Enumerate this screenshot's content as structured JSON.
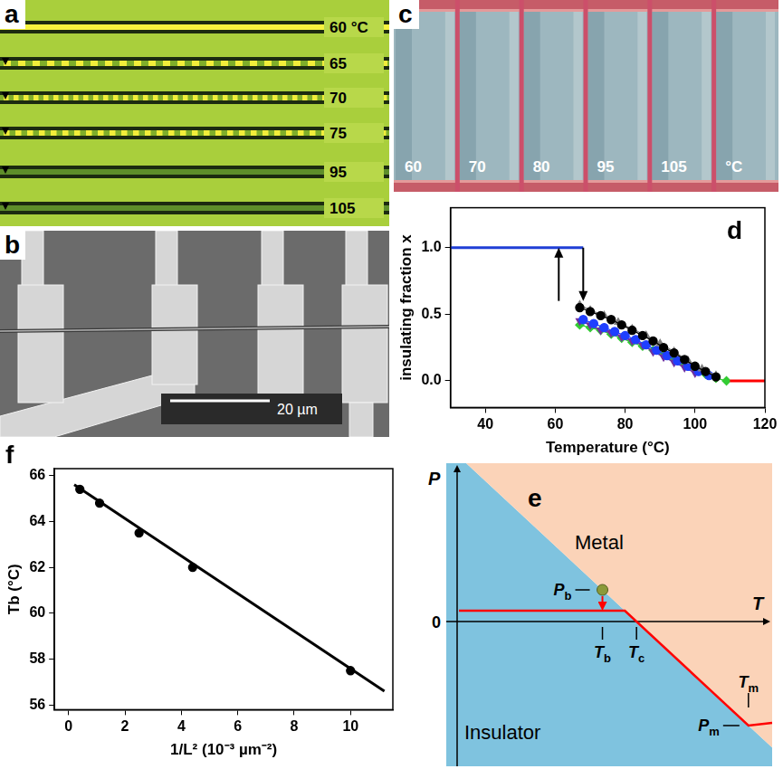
{
  "panels": {
    "a": {
      "label": "a",
      "temperature_labels": [
        "60 °C",
        "65",
        "70",
        "75",
        "95",
        "105"
      ]
    },
    "b": {
      "label": "b",
      "scale_bar": "20 µm"
    },
    "c": {
      "label": "c",
      "temperature_labels": [
        "60",
        "70",
        "80",
        "95",
        "105",
        "°C"
      ]
    },
    "e": {
      "label": "e",
      "axes": {
        "x": "T",
        "y": "P"
      },
      "origin": "0",
      "regions": [
        "Metal",
        "Insulator"
      ],
      "levels": {
        "P": [
          "Pb",
          "Pm"
        ],
        "T": [
          "Tb",
          "Tc",
          "Tm"
        ]
      }
    }
  },
  "chart_data": [
    {
      "panel": "d",
      "type": "scatter",
      "x_label": "Temperature (°C)",
      "y_label": "insulating fraction x",
      "xlim": [
        30,
        120
      ],
      "xticks": [
        40,
        60,
        80,
        100,
        120
      ],
      "ylim": [
        -0.2,
        1.3
      ],
      "yticks": [
        {
          "value": 0,
          "label": "0.0"
        },
        {
          "value": 0.5,
          "label": "0.5"
        },
        {
          "value": 1,
          "label": "1.0"
        }
      ],
      "grid": false,
      "series": [
        {
          "type": "line",
          "color": "#1f3fd6",
          "marker": "none",
          "line_style": "solid",
          "x": [
            30,
            68
          ],
          "values": [
            1,
            1
          ]
        },
        {
          "type": "line",
          "color": "#ff0000",
          "marker": "none",
          "line_style": "solid",
          "x": [
            110,
            120
          ],
          "values": [
            0,
            0
          ]
        },
        {
          "type": "scatter",
          "color": "#000000",
          "marker": "circle",
          "line_style": "solid",
          "x": [
            67,
            70,
            73,
            76,
            79,
            82,
            85,
            88,
            91,
            94,
            97,
            100,
            103,
            106
          ],
          "values": [
            0.55,
            0.52,
            0.49,
            0.46,
            0.42,
            0.38,
            0.34,
            0.3,
            0.25,
            0.21,
            0.16,
            0.11,
            0.07,
            0.03
          ]
        },
        {
          "type": "scatter",
          "color": "#808080",
          "marker": "triangle",
          "line_style": "solid",
          "x": [
            67,
            70,
            74,
            78,
            82,
            86,
            90,
            94,
            98,
            102,
            106
          ],
          "values": [
            0.57,
            0.53,
            0.49,
            0.44,
            0.39,
            0.34,
            0.28,
            0.22,
            0.15,
            0.09,
            0.04
          ]
        },
        {
          "type": "scatter",
          "color": "#1f3fff",
          "marker": "circle",
          "line_style": "solid",
          "x": [
            68,
            71,
            74,
            77,
            80,
            83,
            86,
            89,
            92,
            95,
            98,
            101,
            104
          ],
          "values": [
            0.46,
            0.43,
            0.4,
            0.37,
            0.34,
            0.31,
            0.27,
            0.23,
            0.19,
            0.15,
            0.11,
            0.07,
            0.04
          ]
        },
        {
          "type": "scatter",
          "color": "#7030a0",
          "marker": "triangle_down",
          "line_style": "solid",
          "x": [
            67,
            70,
            73,
            76,
            79,
            82,
            85,
            88,
            91,
            94,
            97,
            100
          ],
          "values": [
            0.45,
            0.42,
            0.38,
            0.36,
            0.33,
            0.3,
            0.27,
            0.22,
            0.18,
            0.14,
            0.1,
            0.06
          ]
        },
        {
          "type": "scatter",
          "color": "#33cc33",
          "marker": "diamond",
          "line_style": "solid",
          "x": [
            67,
            70,
            73,
            76,
            79,
            82,
            85,
            88,
            91,
            94,
            97,
            100,
            103,
            106,
            109
          ],
          "values": [
            0.42,
            0.4,
            0.38,
            0.35,
            0.32,
            0.29,
            0.26,
            0.23,
            0.2,
            0.16,
            0.12,
            0.09,
            0.05,
            0.02,
            0.0
          ]
        }
      ],
      "arrows": [
        {
          "x": 61,
          "from": 0.6,
          "to": 1
        },
        {
          "x": 68,
          "from": 1,
          "to": 0.6
        }
      ]
    },
    {
      "panel": "f",
      "type": "scatter",
      "x_label": "1/L² (10⁻³ µm⁻²)",
      "y_label": "Tb (°C)",
      "xlim": [
        -0.5,
        11.5
      ],
      "xticks": [
        0,
        2,
        4,
        6,
        8,
        10
      ],
      "ylim": [
        55.8,
        66.3
      ],
      "yticks": [
        56,
        58,
        60,
        62,
        64,
        66
      ],
      "grid": false,
      "series": [
        {
          "type": "line",
          "color": "#000000",
          "marker": "none",
          "line_style": "solid",
          "x": [
            0.2,
            11.2
          ],
          "values": [
            65.6,
            56.6
          ]
        },
        {
          "type": "scatter",
          "color": "#000000",
          "marker": "circle",
          "line_style": "none",
          "x": [
            0.4,
            1.1,
            2.5,
            4.4,
            10
          ],
          "values": [
            65.4,
            64.8,
            63.5,
            62.0,
            57.5
          ]
        }
      ]
    }
  ]
}
